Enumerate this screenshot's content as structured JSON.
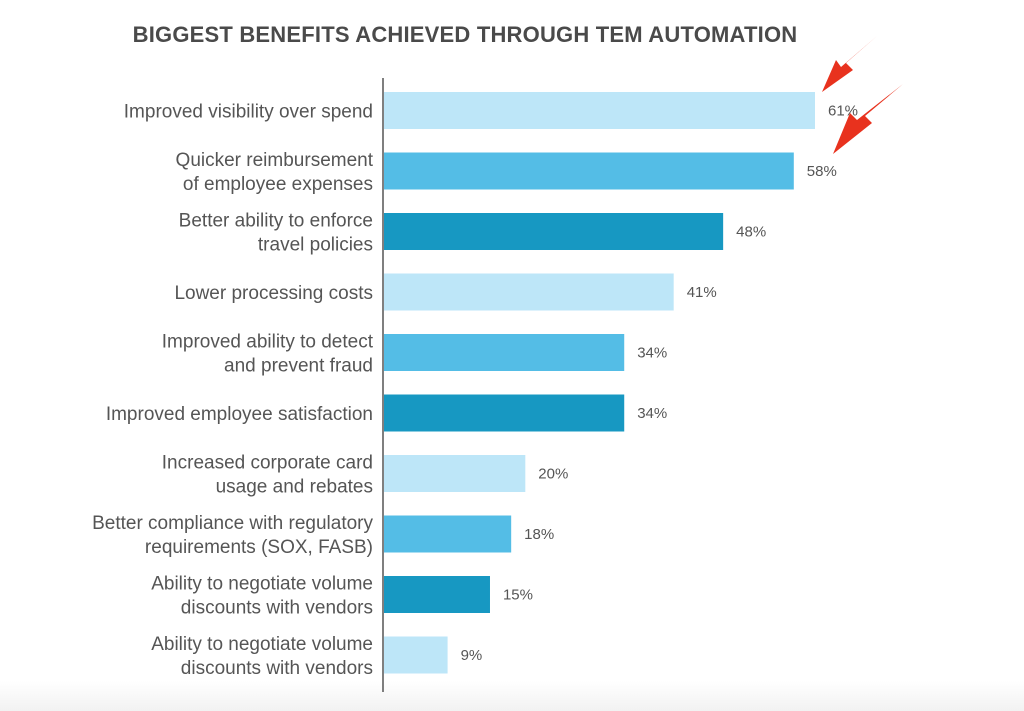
{
  "chart_data": {
    "type": "bar",
    "orientation": "horizontal",
    "title": "BIGGEST BENEFITS ACHIEVED THROUGH TEM AUTOMATION",
    "xlabel": "",
    "ylabel": "",
    "xlim": [
      0,
      61
    ],
    "grid": false,
    "categories": [
      [
        "Improved visibility over spend"
      ],
      [
        "Quicker reimbursement",
        "of employee expenses"
      ],
      [
        "Better ability to enforce",
        "travel policies"
      ],
      [
        "Lower processing costs"
      ],
      [
        "Improved ability to detect",
        "and prevent fraud"
      ],
      [
        "Improved employee satisfaction"
      ],
      [
        "Increased corporate card",
        "usage and rebates"
      ],
      [
        "Better compliance with regulatory",
        "requirements (SOX, FASB)"
      ],
      [
        "Ability to negotiate volume",
        "discounts with vendors"
      ],
      [
        "Ability to negotiate volume",
        "discounts with vendors"
      ]
    ],
    "values": [
      61,
      58,
      48,
      41,
      34,
      34,
      20,
      18,
      15,
      9
    ],
    "value_labels": [
      "61%",
      "58%",
      "48%",
      "41%",
      "34%",
      "34%",
      "20%",
      "18%",
      "15%",
      "9%"
    ],
    "bar_colors": [
      "#bde6f8",
      "#54bde6",
      "#1798c2"
    ],
    "highlight_arrows": [
      0,
      1
    ]
  },
  "colors": {
    "arrow": "#e8321e",
    "axis": "#555555"
  }
}
